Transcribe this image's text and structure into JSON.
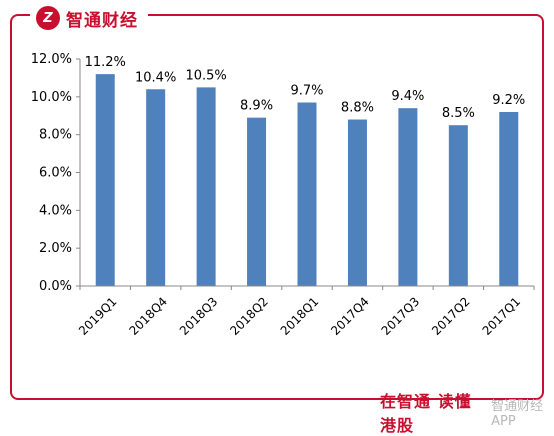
{
  "brand": {
    "icon": "brand-logo-icon",
    "icon_glyph": "Z",
    "name": "智通财经",
    "color": "#c8102e"
  },
  "footer": {
    "slogan": "在智通 读懂港股",
    "app_name": "智通财经APP"
  },
  "chart_data": {
    "type": "bar",
    "title": "",
    "xlabel": "",
    "ylabel": "",
    "categories": [
      "2019Q1",
      "2018Q4",
      "2018Q3",
      "2018Q2",
      "2018Q1",
      "2017Q4",
      "2017Q3",
      "2017Q2",
      "2017Q1"
    ],
    "values": [
      11.2,
      10.4,
      10.5,
      8.9,
      9.7,
      8.8,
      9.4,
      8.5,
      9.2
    ],
    "data_labels": [
      "11.2%",
      "10.4%",
      "10.5%",
      "8.9%",
      "9.7%",
      "8.8%",
      "9.4%",
      "8.5%",
      "9.2%"
    ],
    "ylim": [
      0,
      12
    ],
    "yticks": [
      0,
      2,
      4,
      6,
      8,
      10,
      12
    ],
    "ytick_labels": [
      "0.0%",
      "2.0%",
      "4.0%",
      "6.0%",
      "8.0%",
      "10.0%",
      "12.0%"
    ],
    "bar_color": "#4f81bd",
    "grid": false,
    "legend": "none"
  }
}
